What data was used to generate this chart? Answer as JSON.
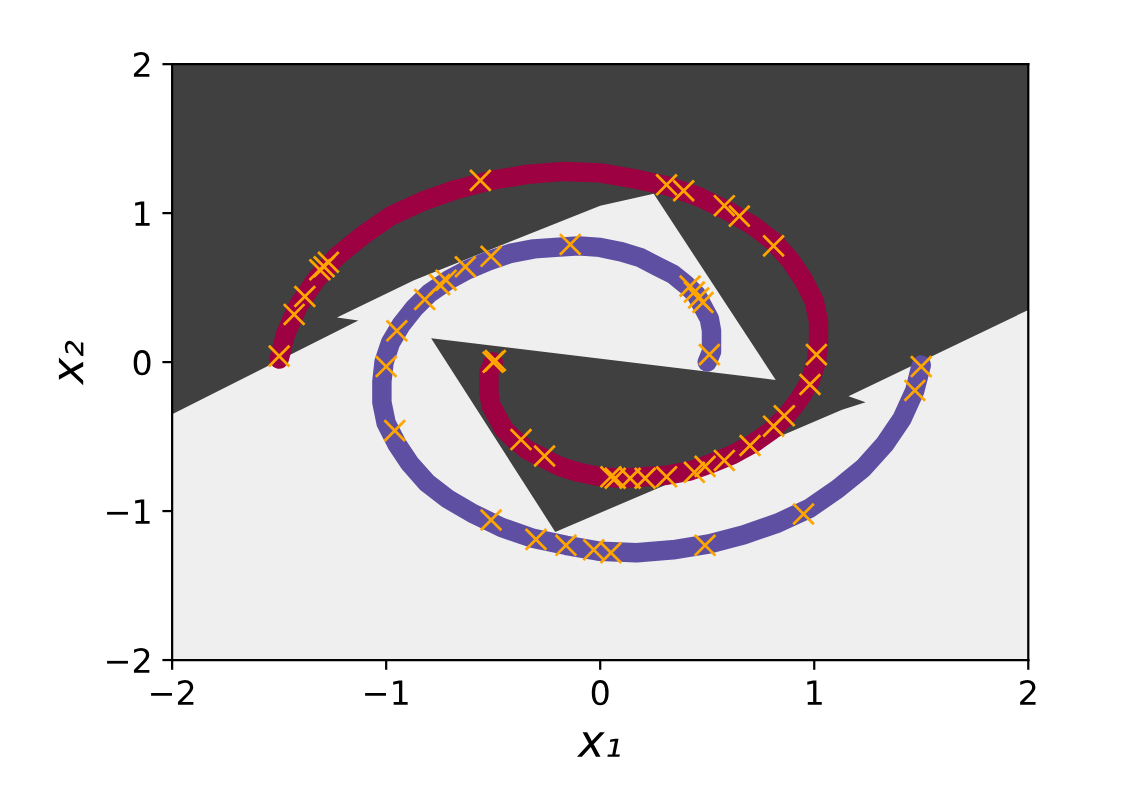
{
  "chart_data": {
    "type": "line",
    "xlabel": "x₁",
    "ylabel": "x₂",
    "xlim": [
      -2,
      2
    ],
    "ylim": [
      -2,
      2
    ],
    "xticks": [
      {
        "value": -2,
        "label": "−2"
      },
      {
        "value": -1,
        "label": "−1"
      },
      0,
      1,
      2
    ],
    "yticks": [
      {
        "value": -2,
        "label": "−2"
      },
      {
        "value": -1,
        "label": "−1"
      },
      0,
      1,
      2
    ],
    "series": [
      {
        "type": "area",
        "color": "#404040",
        "x": [
          -2,
          2,
          2,
          1.16,
          1.24,
          1.13,
          -0.21,
          -0.79,
          0.82,
          0.25,
          0.0,
          -0.87,
          -1.23,
          -1.13,
          -2
        ],
        "values": [
          2,
          2,
          0.35,
          -0.23,
          -0.27,
          -0.32,
          -1.14,
          0.16,
          -0.12,
          1.13,
          1.05,
          0.55,
          0.3,
          0.28,
          -0.35
        ]
      },
      {
        "color": "#9e0142",
        "x": [
          -0.5,
          -0.52,
          -0.52,
          -0.52,
          -0.51,
          -0.48,
          -0.45,
          -0.4,
          -0.34,
          -0.27,
          -0.19,
          -0.1,
          0.0,
          0.1,
          0.21,
          0.31,
          0.42,
          0.52,
          0.62,
          0.71,
          0.8,
          0.87,
          0.93,
          0.98,
          1.01,
          1.02,
          1.02,
          1.0,
          0.95,
          0.89,
          0.81,
          0.71,
          0.59,
          0.46,
          0.32,
          0.16,
          0.0,
          -0.17,
          -0.34,
          -0.51,
          -0.67,
          -0.83,
          -0.98,
          -1.11,
          -1.23,
          -1.33,
          -1.41,
          -1.47,
          -1.5
        ],
        "values": [
          0.0,
          -0.07,
          -0.14,
          -0.21,
          -0.29,
          -0.37,
          -0.45,
          -0.52,
          -0.59,
          -0.64,
          -0.7,
          -0.74,
          -0.77,
          -0.78,
          -0.77,
          -0.76,
          -0.73,
          -0.68,
          -0.62,
          -0.55,
          -0.46,
          -0.36,
          -0.25,
          -0.13,
          0.0,
          0.13,
          0.27,
          0.41,
          0.55,
          0.68,
          0.81,
          0.92,
          1.02,
          1.11,
          1.18,
          1.23,
          1.27,
          1.28,
          1.26,
          1.22,
          1.16,
          1.08,
          0.98,
          0.85,
          0.71,
          0.55,
          0.38,
          0.19,
          0.02
        ]
      },
      {
        "color": "#5e4fa2",
        "x": [
          0.5,
          0.52,
          0.52,
          0.52,
          0.51,
          0.48,
          0.45,
          0.4,
          0.34,
          0.27,
          0.19,
          0.1,
          0.0,
          -0.1,
          -0.21,
          -0.31,
          -0.42,
          -0.52,
          -0.62,
          -0.71,
          -0.8,
          -0.87,
          -0.93,
          -0.98,
          -1.01,
          -1.02,
          -1.02,
          -1.0,
          -0.95,
          -0.89,
          -0.81,
          -0.71,
          -0.59,
          -0.46,
          -0.32,
          -0.16,
          0.0,
          0.17,
          0.34,
          0.51,
          0.67,
          0.83,
          0.98,
          1.11,
          1.23,
          1.33,
          1.41,
          1.47,
          1.5
        ],
        "values": [
          0.0,
          0.07,
          0.14,
          0.21,
          0.29,
          0.37,
          0.45,
          0.52,
          0.59,
          0.64,
          0.7,
          0.74,
          0.77,
          0.78,
          0.77,
          0.76,
          0.73,
          0.68,
          0.62,
          0.55,
          0.46,
          0.36,
          0.25,
          0.13,
          0.0,
          -0.13,
          -0.27,
          -0.41,
          -0.55,
          -0.68,
          -0.81,
          -0.92,
          -1.02,
          -1.11,
          -1.18,
          -1.23,
          -1.27,
          -1.28,
          -1.26,
          -1.22,
          -1.16,
          -1.08,
          -0.98,
          -0.85,
          -0.71,
          -0.55,
          -0.38,
          -0.19,
          -0.02
        ]
      },
      {
        "type": "scatter",
        "color": "#ffa500",
        "marker": "cross",
        "x": [
          -0.56,
          0.31,
          0.39,
          0.58,
          0.65,
          0.81,
          1.01,
          0.98,
          0.86,
          0.81,
          0.7,
          0.58,
          0.49,
          0.44,
          0.31,
          0.21,
          0.14,
          0.07,
          0.05,
          -0.26,
          -0.37,
          -0.5,
          -0.49,
          -1.5,
          -1.43,
          -1.38,
          -1.31,
          -1.29,
          -1.27,
          -0.14,
          -0.51,
          -0.63,
          -0.72,
          -0.75,
          -0.82,
          -0.95,
          -1.0,
          -0.96,
          0.42,
          0.44,
          0.46,
          0.48,
          0.51,
          -0.51,
          -0.3,
          -0.16,
          -0.03,
          0.05,
          0.49,
          0.95,
          1.47,
          1.5
        ],
        "values": [
          1.22,
          1.19,
          1.15,
          1.05,
          0.98,
          0.78,
          0.05,
          -0.15,
          -0.36,
          -0.43,
          -0.56,
          -0.66,
          -0.7,
          -0.74,
          -0.77,
          -0.78,
          -0.78,
          -0.78,
          -0.77,
          -0.63,
          -0.52,
          0.0,
          0.01,
          0.04,
          0.32,
          0.44,
          0.62,
          0.64,
          0.67,
          0.79,
          0.71,
          0.64,
          0.55,
          0.52,
          0.42,
          0.21,
          -0.03,
          -0.46,
          0.51,
          0.47,
          0.43,
          0.4,
          0.05,
          -1.06,
          -1.19,
          -1.23,
          -1.26,
          -1.28,
          -1.23,
          -1.02,
          -0.19,
          -0.03
        ]
      }
    ]
  }
}
